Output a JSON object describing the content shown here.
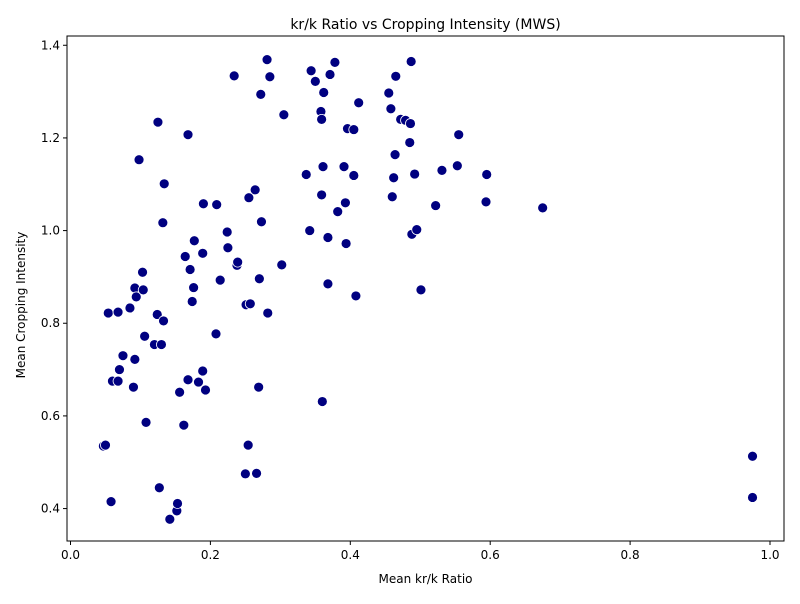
{
  "chart_data": {
    "type": "scatter",
    "title": "kr/k Ratio vs Cropping Intensity (MWS)",
    "xlabel": "Mean kr/k Ratio",
    "ylabel": "Mean Cropping Intensity",
    "xlim": [
      -0.005,
      1.02
    ],
    "ylim": [
      0.33,
      1.42
    ],
    "xticks": [
      0.0,
      0.2,
      0.4,
      0.6,
      0.8,
      1.0
    ],
    "xtick_labels": [
      "0.0",
      "0.2",
      "0.4",
      "0.6",
      "0.8",
      "1.0"
    ],
    "yticks": [
      0.4,
      0.6,
      0.8,
      1.0,
      1.2,
      1.4
    ],
    "ytick_labels": [
      "0.4",
      "0.6",
      "0.8",
      "1.0",
      "1.2",
      "1.4"
    ],
    "grid": false,
    "marker_color": "#000080",
    "marker_edge_color": "#ffffff",
    "points": [
      {
        "x": 0.047,
        "y": 0.535
      },
      {
        "x": 0.05,
        "y": 0.537
      },
      {
        "x": 0.054,
        "y": 0.822
      },
      {
        "x": 0.058,
        "y": 0.415
      },
      {
        "x": 0.06,
        "y": 0.675
      },
      {
        "x": 0.068,
        "y": 0.675
      },
      {
        "x": 0.068,
        "y": 0.824
      },
      {
        "x": 0.07,
        "y": 0.7
      },
      {
        "x": 0.075,
        "y": 0.73
      },
      {
        "x": 0.085,
        "y": 0.833
      },
      {
        "x": 0.09,
        "y": 0.662
      },
      {
        "x": 0.092,
        "y": 0.722
      },
      {
        "x": 0.092,
        "y": 0.876
      },
      {
        "x": 0.094,
        "y": 0.857
      },
      {
        "x": 0.098,
        "y": 1.153
      },
      {
        "x": 0.103,
        "y": 0.91
      },
      {
        "x": 0.104,
        "y": 0.872
      },
      {
        "x": 0.106,
        "y": 0.772
      },
      {
        "x": 0.108,
        "y": 0.586
      },
      {
        "x": 0.12,
        "y": 0.754
      },
      {
        "x": 0.124,
        "y": 0.819
      },
      {
        "x": 0.125,
        "y": 1.234
      },
      {
        "x": 0.127,
        "y": 0.445
      },
      {
        "x": 0.13,
        "y": 0.754
      },
      {
        "x": 0.132,
        "y": 1.017
      },
      {
        "x": 0.133,
        "y": 0.805
      },
      {
        "x": 0.134,
        "y": 1.101
      },
      {
        "x": 0.142,
        "y": 0.377
      },
      {
        "x": 0.152,
        "y": 0.395
      },
      {
        "x": 0.153,
        "y": 0.411
      },
      {
        "x": 0.156,
        "y": 0.651
      },
      {
        "x": 0.162,
        "y": 0.58
      },
      {
        "x": 0.164,
        "y": 0.944
      },
      {
        "x": 0.168,
        "y": 0.678
      },
      {
        "x": 0.168,
        "y": 1.207
      },
      {
        "x": 0.171,
        "y": 0.916
      },
      {
        "x": 0.174,
        "y": 0.847
      },
      {
        "x": 0.176,
        "y": 0.877
      },
      {
        "x": 0.177,
        "y": 0.978
      },
      {
        "x": 0.183,
        "y": 0.673
      },
      {
        "x": 0.189,
        "y": 0.697
      },
      {
        "x": 0.189,
        "y": 0.951
      },
      {
        "x": 0.19,
        "y": 1.058
      },
      {
        "x": 0.193,
        "y": 0.656
      },
      {
        "x": 0.208,
        "y": 0.777
      },
      {
        "x": 0.209,
        "y": 1.056
      },
      {
        "x": 0.214,
        "y": 0.893
      },
      {
        "x": 0.224,
        "y": 0.997
      },
      {
        "x": 0.225,
        "y": 0.963
      },
      {
        "x": 0.234,
        "y": 1.334
      },
      {
        "x": 0.238,
        "y": 0.925
      },
      {
        "x": 0.239,
        "y": 0.932
      },
      {
        "x": 0.25,
        "y": 0.475
      },
      {
        "x": 0.251,
        "y": 0.84
      },
      {
        "x": 0.254,
        "y": 0.537
      },
      {
        "x": 0.255,
        "y": 1.071
      },
      {
        "x": 0.257,
        "y": 0.842
      },
      {
        "x": 0.264,
        "y": 1.088
      },
      {
        "x": 0.266,
        "y": 0.476
      },
      {
        "x": 0.269,
        "y": 0.662
      },
      {
        "x": 0.27,
        "y": 0.896
      },
      {
        "x": 0.272,
        "y": 1.294
      },
      {
        "x": 0.273,
        "y": 1.019
      },
      {
        "x": 0.281,
        "y": 1.369
      },
      {
        "x": 0.282,
        "y": 0.822
      },
      {
        "x": 0.285,
        "y": 1.332
      },
      {
        "x": 0.302,
        "y": 0.926
      },
      {
        "x": 0.305,
        "y": 1.25
      },
      {
        "x": 0.337,
        "y": 1.121
      },
      {
        "x": 0.342,
        "y": 1.0
      },
      {
        "x": 0.344,
        "y": 1.345
      },
      {
        "x": 0.35,
        "y": 1.322
      },
      {
        "x": 0.358,
        "y": 1.257
      },
      {
        "x": 0.359,
        "y": 1.24
      },
      {
        "x": 0.359,
        "y": 1.077
      },
      {
        "x": 0.36,
        "y": 0.631
      },
      {
        "x": 0.361,
        "y": 1.138
      },
      {
        "x": 0.362,
        "y": 1.298
      },
      {
        "x": 0.368,
        "y": 0.885
      },
      {
        "x": 0.368,
        "y": 0.985
      },
      {
        "x": 0.371,
        "y": 1.337
      },
      {
        "x": 0.378,
        "y": 1.363
      },
      {
        "x": 0.382,
        "y": 1.041
      },
      {
        "x": 0.391,
        "y": 1.138
      },
      {
        "x": 0.393,
        "y": 1.06
      },
      {
        "x": 0.394,
        "y": 0.972
      },
      {
        "x": 0.396,
        "y": 1.22
      },
      {
        "x": 0.405,
        "y": 1.218
      },
      {
        "x": 0.405,
        "y": 1.119
      },
      {
        "x": 0.408,
        "y": 0.859
      },
      {
        "x": 0.412,
        "y": 1.276
      },
      {
        "x": 0.455,
        "y": 1.297
      },
      {
        "x": 0.458,
        "y": 1.263
      },
      {
        "x": 0.46,
        "y": 1.073
      },
      {
        "x": 0.462,
        "y": 1.114
      },
      {
        "x": 0.464,
        "y": 1.164
      },
      {
        "x": 0.465,
        "y": 1.333
      },
      {
        "x": 0.472,
        "y": 1.24
      },
      {
        "x": 0.479,
        "y": 1.238
      },
      {
        "x": 0.485,
        "y": 1.19
      },
      {
        "x": 0.486,
        "y": 1.231
      },
      {
        "x": 0.487,
        "y": 1.365
      },
      {
        "x": 0.488,
        "y": 0.992
      },
      {
        "x": 0.492,
        "y": 1.122
      },
      {
        "x": 0.495,
        "y": 1.002
      },
      {
        "x": 0.501,
        "y": 0.872
      },
      {
        "x": 0.522,
        "y": 1.054
      },
      {
        "x": 0.531,
        "y": 1.13
      },
      {
        "x": 0.553,
        "y": 1.14
      },
      {
        "x": 0.555,
        "y": 1.207
      },
      {
        "x": 0.594,
        "y": 1.062
      },
      {
        "x": 0.595,
        "y": 1.121
      },
      {
        "x": 0.675,
        "y": 1.049
      },
      {
        "x": 0.975,
        "y": 0.513
      },
      {
        "x": 0.975,
        "y": 0.424
      }
    ]
  }
}
